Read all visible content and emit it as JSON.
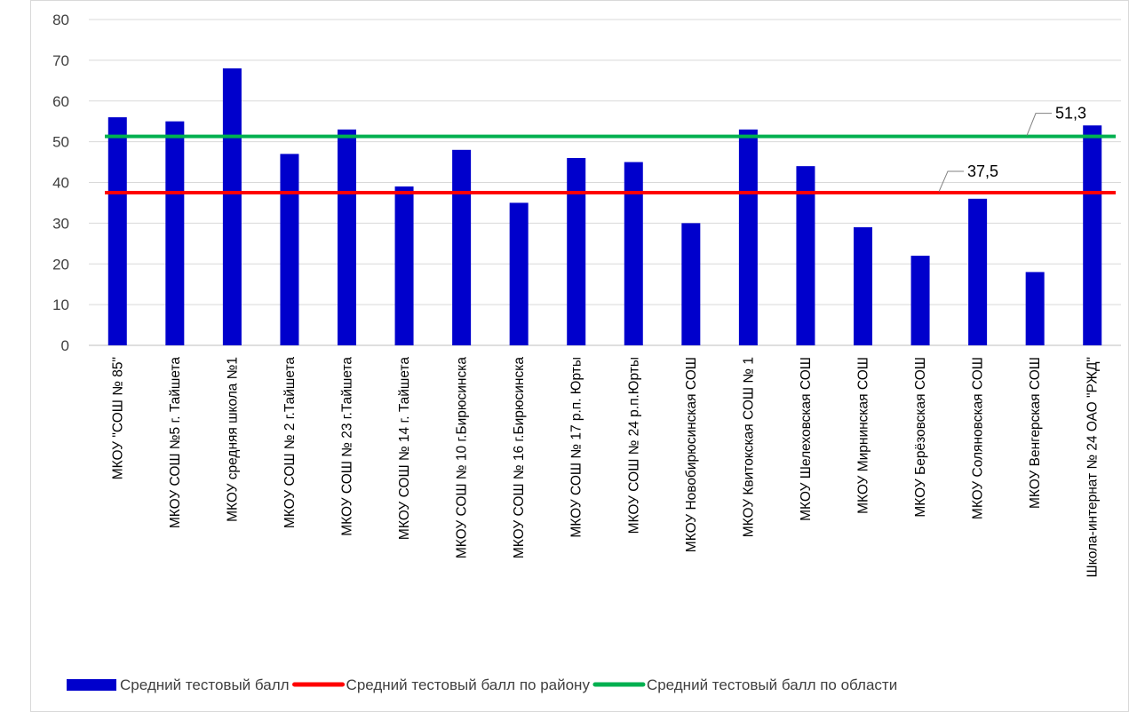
{
  "chart_data": {
    "type": "bar",
    "title": "",
    "xlabel": "",
    "ylabel": "",
    "ylim": [
      0,
      80
    ],
    "yticks": [
      0,
      10,
      20,
      30,
      40,
      50,
      60,
      70,
      80
    ],
    "grid": true,
    "legend_position": "bottom",
    "categories": [
      "МКОУ \"СОШ № 85\"",
      "МКОУ СОШ №5 г. Тайшета",
      "МКОУ средняя школа №1",
      "МКОУ СОШ № 2 г.Тайшета",
      "МКОУ СОШ № 23 г.Тайшета",
      "МКОУ СОШ № 14 г. Тайшета",
      "МКОУ СОШ № 10 г.Бирюсинска",
      "МКОУ СОШ № 16 г.Бирюсинска",
      "МКОУ СОШ № 17 р.п. Юрты",
      "МКОУ СОШ № 24 р.п.Юрты",
      "МКОУ Новобирюсинская СОШ",
      "МКОУ Квитокская СОШ № 1",
      "МКОУ Шелеховская СОШ",
      "МКОУ Мирнинская СОШ",
      "МКОУ Берёзовская СОШ",
      "МКОУ Соляновская СОШ",
      "МКОУ Венгерская СОШ",
      "Школа-интернат № 24 ОАО \"РЖД\""
    ],
    "series": [
      {
        "name": "Средний тестовый балл",
        "kind": "bar",
        "color": "#0000CC",
        "values": [
          56,
          55,
          68,
          47,
          53,
          39,
          48,
          35,
          46,
          45,
          30,
          53,
          44,
          29,
          22,
          36,
          18,
          54
        ]
      },
      {
        "name": "Средний тестовый балл по району",
        "kind": "line",
        "color": "#FF0000",
        "value": 37.5,
        "label": "37,5"
      },
      {
        "name": "Средний тестовый балл по области",
        "kind": "line",
        "color": "#00B050",
        "value": 51.3,
        "label": "51,3"
      }
    ]
  }
}
